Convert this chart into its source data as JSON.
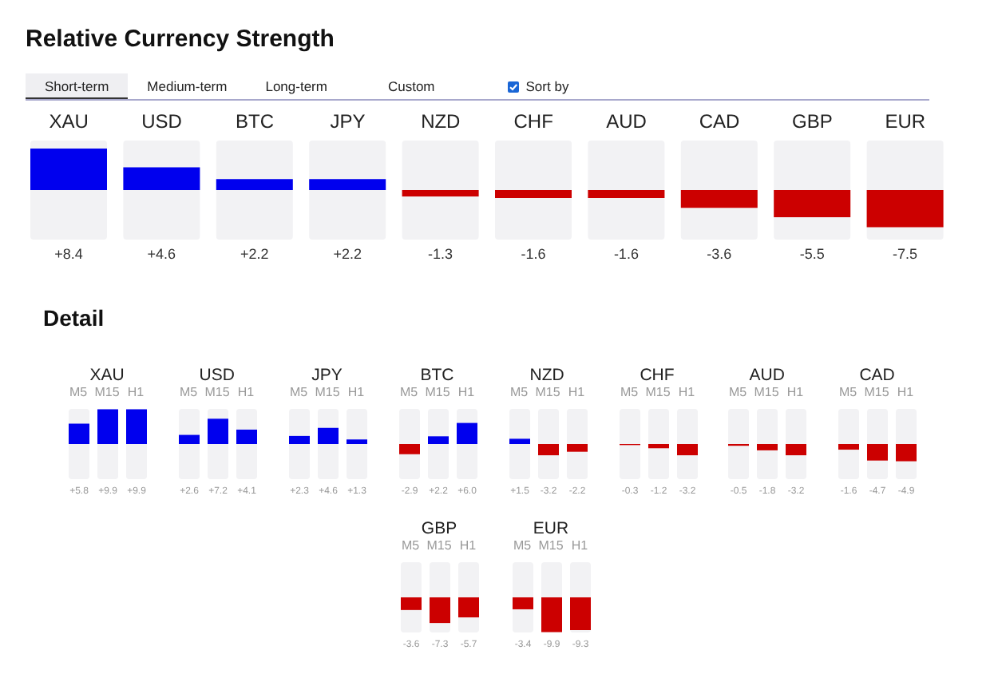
{
  "chart_data": [
    {
      "type": "bar",
      "title": "Relative Currency Strength",
      "annotations": [
        "Short-term",
        "Medium-term",
        "Long-term",
        "Custom",
        "Sort by"
      ],
      "categories": [
        "XAU",
        "USD",
        "BTC",
        "JPY",
        "NZD",
        "CHF",
        "AUD",
        "CAD",
        "GBP",
        "EUR"
      ],
      "values": [
        8.4,
        4.6,
        2.2,
        2.2,
        -1.3,
        -1.6,
        -1.6,
        -3.6,
        -5.5,
        -7.5
      ],
      "colors": [
        "#0000ee",
        "#0000ee",
        "#0000ee",
        "#0000ee",
        "#cc0000",
        "#cc0000",
        "#cc0000",
        "#cc0000",
        "#cc0000",
        "#cc0000"
      ],
      "value_labels": [
        "+8.4",
        "+4.6",
        "+2.2",
        "+2.2",
        "-1.3",
        "-1.6",
        "-1.6",
        "-3.6",
        "-5.5",
        "-7.5"
      ],
      "ylim": [
        -10,
        10
      ],
      "tick_labels": "x"
    },
    {
      "type": "bar",
      "title": "XAU",
      "annotations": [
        "Detail"
      ],
      "categories": [
        "M5",
        "M15",
        "H1"
      ],
      "values": [
        5.8,
        9.9,
        9.9
      ],
      "colors": [
        "#0000ee",
        "#0000ee",
        "#0000ee"
      ],
      "value_labels": [
        "+5.8",
        "+9.9",
        "+9.9"
      ],
      "ylim": [
        -10,
        10
      ],
      "tick_labels": "x"
    },
    {
      "type": "bar",
      "title": "USD",
      "categories": [
        "M5",
        "M15",
        "H1"
      ],
      "values": [
        2.6,
        7.2,
        4.1
      ],
      "colors": [
        "#0000ee",
        "#0000ee",
        "#0000ee"
      ],
      "value_labels": [
        "+2.6",
        "+7.2",
        "+4.1"
      ],
      "ylim": [
        -10,
        10
      ],
      "tick_labels": "x"
    },
    {
      "type": "bar",
      "title": "JPY",
      "categories": [
        "M5",
        "M15",
        "H1"
      ],
      "values": [
        2.3,
        4.6,
        1.3
      ],
      "colors": [
        "#0000ee",
        "#0000ee",
        "#0000ee"
      ],
      "value_labels": [
        "+2.3",
        "+4.6",
        "+1.3"
      ],
      "ylim": [
        -10,
        10
      ],
      "tick_labels": "x"
    },
    {
      "type": "bar",
      "title": "BTC",
      "categories": [
        "M5",
        "M15",
        "H1"
      ],
      "values": [
        -2.9,
        2.2,
        6.0
      ],
      "colors": [
        "#cc0000",
        "#0000ee",
        "#0000ee"
      ],
      "value_labels": [
        "-2.9",
        "+2.2",
        "+6.0"
      ],
      "ylim": [
        -10,
        10
      ],
      "tick_labels": "x"
    },
    {
      "type": "bar",
      "title": "NZD",
      "categories": [
        "M5",
        "M15",
        "H1"
      ],
      "values": [
        1.5,
        -3.2,
        -2.2
      ],
      "colors": [
        "#0000ee",
        "#cc0000",
        "#cc0000"
      ],
      "value_labels": [
        "+1.5",
        "-3.2",
        "-2.2"
      ],
      "ylim": [
        -10,
        10
      ],
      "tick_labels": "x"
    },
    {
      "type": "bar",
      "title": "CHF",
      "categories": [
        "M5",
        "M15",
        "H1"
      ],
      "values": [
        -0.3,
        -1.2,
        -3.2
      ],
      "colors": [
        "#cc0000",
        "#cc0000",
        "#cc0000"
      ],
      "value_labels": [
        "-0.3",
        "-1.2",
        "-3.2"
      ],
      "ylim": [
        -10,
        10
      ],
      "tick_labels": "x"
    },
    {
      "type": "bar",
      "title": "AUD",
      "categories": [
        "M5",
        "M15",
        "H1"
      ],
      "values": [
        -0.5,
        -1.8,
        -3.2
      ],
      "colors": [
        "#cc0000",
        "#cc0000",
        "#cc0000"
      ],
      "value_labels": [
        "-0.5",
        "-1.8",
        "-3.2"
      ],
      "ylim": [
        -10,
        10
      ],
      "tick_labels": "x"
    },
    {
      "type": "bar",
      "title": "CAD",
      "categories": [
        "M5",
        "M15",
        "H1"
      ],
      "values": [
        -1.6,
        -4.7,
        -4.9
      ],
      "colors": [
        "#cc0000",
        "#cc0000",
        "#cc0000"
      ],
      "value_labels": [
        "-1.6",
        "-4.7",
        "-4.9"
      ],
      "ylim": [
        -10,
        10
      ],
      "tick_labels": "x"
    },
    {
      "type": "bar",
      "title": "GBP",
      "categories": [
        "M5",
        "M15",
        "H1"
      ],
      "values": [
        -3.6,
        -7.3,
        -5.7
      ],
      "colors": [
        "#cc0000",
        "#cc0000",
        "#cc0000"
      ],
      "value_labels": [
        "-3.6",
        "-7.3",
        "-5.7"
      ],
      "ylim": [
        -10,
        10
      ],
      "tick_labels": "x"
    },
    {
      "type": "bar",
      "title": "EUR",
      "categories": [
        "M5",
        "M15",
        "H1"
      ],
      "values": [
        -3.4,
        -9.9,
        -9.3
      ],
      "colors": [
        "#cc0000",
        "#cc0000",
        "#cc0000"
      ],
      "value_labels": [
        "-3.4",
        "-9.9",
        "-9.3"
      ],
      "ylim": [
        -10,
        10
      ],
      "tick_labels": "x"
    }
  ]
}
